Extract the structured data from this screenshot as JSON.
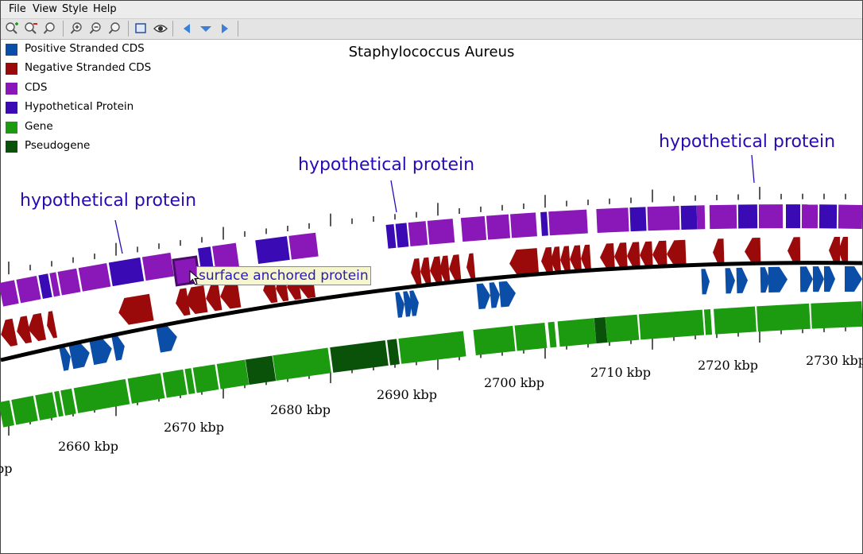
{
  "menu": [
    "File",
    "View",
    "Style",
    "Help"
  ],
  "toolbar": {
    "buttons": [
      {
        "name": "zoom-add-icon"
      },
      {
        "name": "zoom-remove-icon"
      },
      {
        "name": "zoom-search-icon"
      },
      {
        "name": "zoom-in-icon"
      },
      {
        "name": "zoom-out-icon"
      },
      {
        "name": "zoom-reset-icon"
      },
      {
        "name": "fit-window-icon"
      },
      {
        "name": "eye-icon"
      },
      {
        "name": "arrow-left-icon"
      },
      {
        "name": "arrow-down-icon"
      },
      {
        "name": "arrow-right-icon"
      }
    ]
  },
  "title": "Staphylococcus Aureus",
  "legend": [
    {
      "label": "Positive Stranded CDS",
      "color": "#0b4ea8"
    },
    {
      "label": "Negative Stranded CDS",
      "color": "#9a0a0a"
    },
    {
      "label": "CDS",
      "color": "#8a18b8"
    },
    {
      "label": "Hypothetical Protein",
      "color": "#3a0ab4"
    },
    {
      "label": "Gene",
      "color": "#1c9a10"
    },
    {
      "label": "Pseudogene",
      "color": "#0a520a"
    }
  ],
  "annotations": [
    "hypothetical protein",
    "hypothetical protein",
    "hypothetical protein"
  ],
  "tooltip": "surface anchored protein",
  "axis_labels": [
    "bp",
    "2660 kbp",
    "2670 kbp",
    "2680 kbp",
    "2690 kbp",
    "2700 kbp",
    "2710 kbp",
    "2720 kbp",
    "2730 kbp"
  ]
}
